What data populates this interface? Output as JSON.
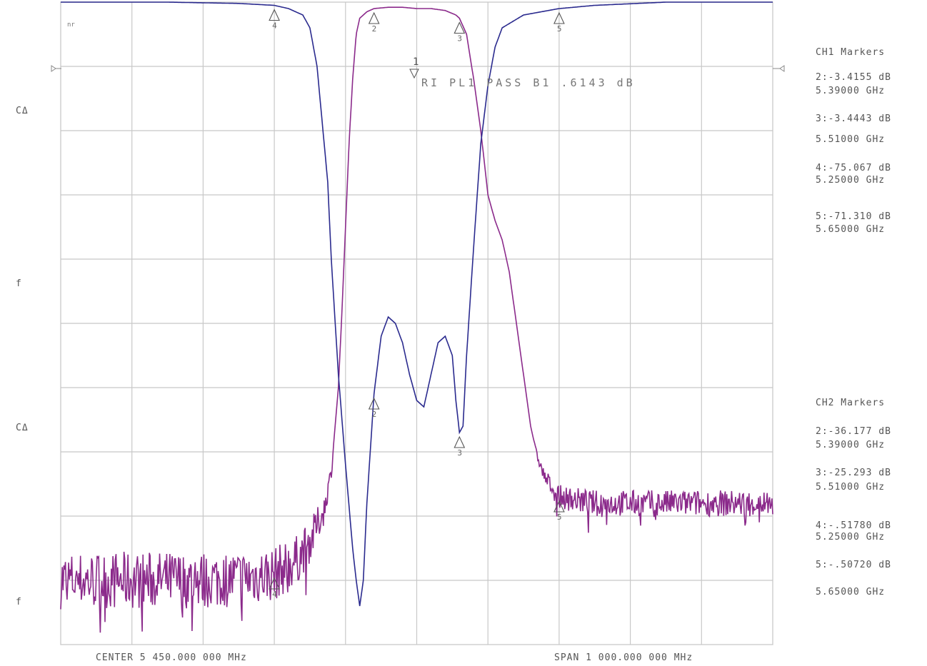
{
  "corner_glyph": "nr",
  "left_labels": [
    "CΔ",
    "f",
    "CΔ",
    "f"
  ],
  "center_label": "CENTER 5 450.000 000 MHz",
  "span_label": "SPAN 1 000.000 000 MHz",
  "limit_text": "RI PL1  PASS  B1  .6143 dB",
  "ch1": {
    "title": "CH1 Markers",
    "entries": [
      {
        "value": "2:-3.4155 dB",
        "freq": "5.39000 GHz"
      },
      {
        "value": "3:-3.4443 dB",
        "freq": "5.51000 GHz"
      },
      {
        "value": "4:-75.067 dB",
        "freq": "5.25000 GHz"
      },
      {
        "value": "5:-71.310 dB",
        "freq": "5.65000 GHz"
      }
    ]
  },
  "ch2": {
    "title": "CH2 Markers",
    "entries": [
      {
        "value": "2:-36.177 dB",
        "freq": "5.39000 GHz"
      },
      {
        "value": "3:-25.293 dB",
        "freq": "5.51000 GHz"
      },
      {
        "value": "4:-.51780 dB",
        "freq": "5.25000 GHz"
      },
      {
        "value": "5:-.50720 dB",
        "freq": "5.65000 GHz"
      }
    ]
  },
  "colors": {
    "grid": "#c8c8c8",
    "trace_transmission": "#8b2a8b",
    "trace_reflection": "#2a2a8e",
    "marker": "#555555"
  },
  "chart_data": {
    "type": "line",
    "x_range_ghz": [
      4.95,
      5.95
    ],
    "divisions": 10,
    "grid": true,
    "series": [
      {
        "points_ghz_level": [
          [
            4.95,
            0.1
          ],
          [
            5.05,
            0.1
          ],
          [
            5.15,
            0.1
          ],
          [
            5.2,
            0.103
          ],
          [
            5.25,
            0.11
          ],
          [
            5.28,
            0.13
          ],
          [
            5.3,
            0.16
          ],
          [
            5.32,
            0.21
          ],
          [
            5.33,
            0.27
          ],
          [
            5.34,
            0.4
          ],
          [
            5.345,
            0.52
          ],
          [
            5.35,
            0.65
          ],
          [
            5.355,
            0.78
          ],
          [
            5.36,
            0.88
          ],
          [
            5.365,
            0.95
          ],
          [
            5.37,
            0.975
          ],
          [
            5.38,
            0.985
          ],
          [
            5.39,
            0.99
          ],
          [
            5.41,
            0.992
          ],
          [
            5.43,
            0.992
          ],
          [
            5.45,
            0.99
          ],
          [
            5.47,
            0.99
          ],
          [
            5.49,
            0.987
          ],
          [
            5.505,
            0.98
          ],
          [
            5.51,
            0.975
          ],
          [
            5.52,
            0.95
          ],
          [
            5.53,
            0.88
          ],
          [
            5.54,
            0.8
          ],
          [
            5.55,
            0.7
          ],
          [
            5.56,
            0.66
          ],
          [
            5.57,
            0.63
          ],
          [
            5.58,
            0.58
          ],
          [
            5.59,
            0.5
          ],
          [
            5.6,
            0.42
          ],
          [
            5.61,
            0.34
          ],
          [
            5.62,
            0.29
          ],
          [
            5.63,
            0.26
          ],
          [
            5.65,
            0.23
          ],
          [
            5.7,
            0.22
          ],
          [
            5.8,
            0.22
          ],
          [
            5.95,
            0.22
          ]
        ]
      },
      {
        "points_ghz_level": [
          [
            4.95,
            1.0
          ],
          [
            5.1,
            1.0
          ],
          [
            5.2,
            0.998
          ],
          [
            5.25,
            0.995
          ],
          [
            5.27,
            0.99
          ],
          [
            5.29,
            0.98
          ],
          [
            5.3,
            0.96
          ],
          [
            5.31,
            0.9
          ],
          [
            5.32,
            0.78
          ],
          [
            5.325,
            0.72
          ],
          [
            5.33,
            0.6
          ],
          [
            5.34,
            0.42
          ],
          [
            5.35,
            0.28
          ],
          [
            5.36,
            0.15
          ],
          [
            5.365,
            0.1
          ],
          [
            5.37,
            0.06
          ],
          [
            5.375,
            0.1
          ],
          [
            5.38,
            0.22
          ],
          [
            5.39,
            0.39
          ],
          [
            5.4,
            0.48
          ],
          [
            5.41,
            0.51
          ],
          [
            5.42,
            0.5
          ],
          [
            5.43,
            0.47
          ],
          [
            5.44,
            0.42
          ],
          [
            5.45,
            0.38
          ],
          [
            5.46,
            0.37
          ],
          [
            5.47,
            0.42
          ],
          [
            5.48,
            0.47
          ],
          [
            5.49,
            0.48
          ],
          [
            5.5,
            0.45
          ],
          [
            5.505,
            0.38
          ],
          [
            5.51,
            0.33
          ],
          [
            5.515,
            0.34
          ],
          [
            5.52,
            0.45
          ],
          [
            5.53,
            0.62
          ],
          [
            5.54,
            0.78
          ],
          [
            5.55,
            0.87
          ],
          [
            5.56,
            0.93
          ],
          [
            5.57,
            0.96
          ],
          [
            5.6,
            0.98
          ],
          [
            5.65,
            0.99
          ],
          [
            5.7,
            0.995
          ],
          [
            5.8,
            1.0
          ],
          [
            5.95,
            1.0
          ]
        ]
      }
    ],
    "markers": [
      {
        "trace": 0,
        "n": "2",
        "f_ghz": 5.39
      },
      {
        "trace": 0,
        "n": "3",
        "f_ghz": 5.51
      },
      {
        "trace": 0,
        "n": "4",
        "f_ghz": 5.25
      },
      {
        "trace": 0,
        "n": "5",
        "f_ghz": 5.65
      },
      {
        "trace": 1,
        "n": "4",
        "f_ghz": 5.25
      },
      {
        "trace": 1,
        "n": "2",
        "f_ghz": 5.39
      },
      {
        "trace": 1,
        "n": "3",
        "f_ghz": 5.51
      },
      {
        "trace": 1,
        "n": "5",
        "f_ghz": 5.65
      }
    ]
  }
}
